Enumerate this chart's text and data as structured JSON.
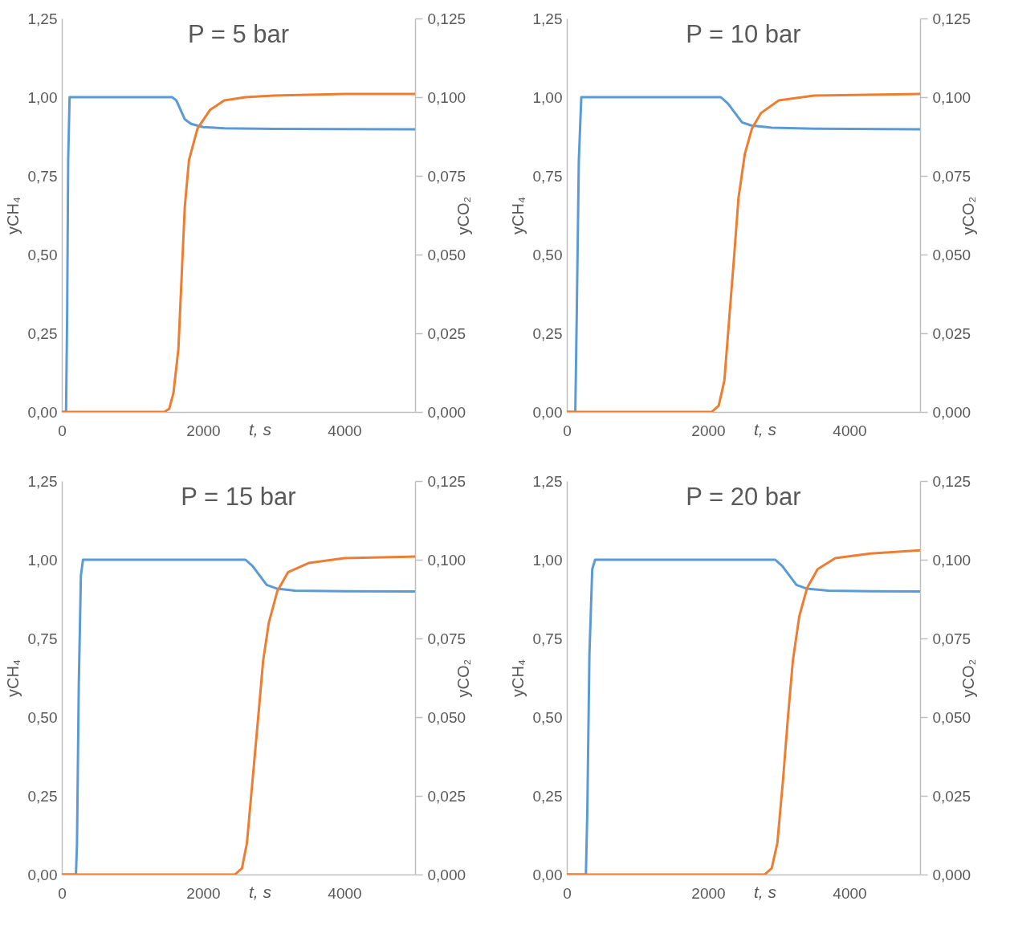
{
  "chart_data": [
    {
      "type": "line",
      "title": "P = 5 bar",
      "xlabel": "t, s",
      "ylabel": "yCH₄",
      "y2label": "yCO₂",
      "xlim": [
        0,
        5000
      ],
      "xticks": [
        0,
        2000,
        4000
      ],
      "ylim": [
        0,
        1.25
      ],
      "yticks": [
        {
          "value": 0,
          "label": "0,00"
        },
        {
          "value": 0.25,
          "label": "0,25"
        },
        {
          "value": 0.5,
          "label": "0,50"
        },
        {
          "value": 0.75,
          "label": "0,75"
        },
        {
          "value": 1,
          "label": "1,00"
        },
        {
          "value": 1.25,
          "label": "1,25"
        }
      ],
      "y2lim": [
        0,
        0.125
      ],
      "y2ticks": [
        {
          "value": 0,
          "label": "0,000"
        },
        {
          "value": 0.025,
          "label": "0,025"
        },
        {
          "value": 0.05,
          "label": "0,050"
        },
        {
          "value": 0.075,
          "label": "0,075"
        },
        {
          "value": 0.1,
          "label": "0,100"
        },
        {
          "value": 0.125,
          "label": "0,125"
        }
      ],
      "series": [
        {
          "color": "#5b9bd5",
          "x": [
            0,
            60,
            75,
            90,
            110,
            1560,
            1620,
            1680,
            1740,
            1830,
            2000,
            2300,
            3000,
            5000
          ],
          "values": [
            0,
            0,
            0.3,
            0.8,
            1,
            1,
            0.99,
            0.96,
            0.93,
            0.915,
            0.905,
            0.901,
            0.899,
            0.898
          ]
        },
        {
          "color": "#ed7d31",
          "axis": "y2",
          "x": [
            0,
            1450,
            1520,
            1580,
            1650,
            1700,
            1740,
            1800,
            1920,
            2100,
            2300,
            2600,
            3000,
            4000,
            5000
          ],
          "values": [
            0,
            0,
            0.001,
            0.006,
            0.02,
            0.045,
            0.065,
            0.08,
            0.09,
            0.096,
            0.099,
            0.1,
            0.1005,
            0.101,
            0.101
          ]
        }
      ]
    },
    {
      "type": "line",
      "title": "P = 10 bar",
      "xlabel": "t, s",
      "ylabel": "yCH₄",
      "y2label": "yCO₂",
      "xlim": [
        0,
        5000
      ],
      "xticks": [
        0,
        2000,
        4000
      ],
      "ylim": [
        0,
        1.25
      ],
      "yticks": [
        {
          "value": 0,
          "label": "0,00"
        },
        {
          "value": 0.25,
          "label": "0,25"
        },
        {
          "value": 0.5,
          "label": "0,50"
        },
        {
          "value": 0.75,
          "label": "0,75"
        },
        {
          "value": 1,
          "label": "1,00"
        },
        {
          "value": 1.25,
          "label": "1,25"
        }
      ],
      "y2lim": [
        0,
        0.125
      ],
      "y2ticks": [
        {
          "value": 0,
          "label": "0,000"
        },
        {
          "value": 0.025,
          "label": "0,025"
        },
        {
          "value": 0.05,
          "label": "0,050"
        },
        {
          "value": 0.075,
          "label": "0,075"
        },
        {
          "value": 0.1,
          "label": "0,100"
        },
        {
          "value": 0.125,
          "label": "0,125"
        }
      ],
      "series": [
        {
          "color": "#5b9bd5",
          "x": [
            0,
            120,
            140,
            170,
            205,
            2180,
            2280,
            2380,
            2480,
            2610,
            2900,
            3500,
            5000
          ],
          "values": [
            0,
            0,
            0.3,
            0.8,
            1,
            1,
            0.98,
            0.95,
            0.92,
            0.91,
            0.903,
            0.9,
            0.898
          ]
        },
        {
          "color": "#ed7d31",
          "axis": "y2",
          "x": [
            0,
            2050,
            2150,
            2230,
            2300,
            2370,
            2430,
            2520,
            2620,
            2750,
            3000,
            3500,
            5000
          ],
          "values": [
            0,
            0,
            0.002,
            0.01,
            0.03,
            0.05,
            0.068,
            0.082,
            0.09,
            0.095,
            0.099,
            0.1005,
            0.101
          ]
        }
      ]
    },
    {
      "type": "line",
      "title": "P = 15 bar",
      "xlabel": "t, s",
      "ylabel": "yCH₄",
      "y2label": "yCO₂",
      "xlim": [
        0,
        5000
      ],
      "xticks": [
        0,
        2000,
        4000
      ],
      "ylim": [
        0,
        1.25
      ],
      "yticks": [
        {
          "value": 0,
          "label": "0,00"
        },
        {
          "value": 0.25,
          "label": "0,25"
        },
        {
          "value": 0.5,
          "label": "0,50"
        },
        {
          "value": 0.75,
          "label": "0,75"
        },
        {
          "value": 1,
          "label": "1,00"
        },
        {
          "value": 1.25,
          "label": "1,25"
        }
      ],
      "y2lim": [
        0,
        0.125
      ],
      "y2ticks": [
        {
          "value": 0,
          "label": "0,000"
        },
        {
          "value": 0.025,
          "label": "0,025"
        },
        {
          "value": 0.05,
          "label": "0,050"
        },
        {
          "value": 0.075,
          "label": "0,075"
        },
        {
          "value": 0.1,
          "label": "0,100"
        },
        {
          "value": 0.125,
          "label": "0,125"
        }
      ],
      "series": [
        {
          "color": "#5b9bd5",
          "x": [
            0,
            200,
            215,
            240,
            270,
            300,
            2600,
            2700,
            2800,
            2900,
            3050,
            3300,
            4000,
            5000
          ],
          "values": [
            0,
            0,
            0.1,
            0.6,
            0.95,
            1,
            1,
            0.98,
            0.95,
            0.92,
            0.908,
            0.902,
            0.9,
            0.899
          ]
        },
        {
          "color": "#ed7d31",
          "axis": "y2",
          "x": [
            0,
            2450,
            2550,
            2620,
            2700,
            2780,
            2850,
            2930,
            3050,
            3200,
            3500,
            4000,
            5000
          ],
          "values": [
            0,
            0,
            0.002,
            0.01,
            0.03,
            0.05,
            0.068,
            0.08,
            0.09,
            0.096,
            0.099,
            0.1005,
            0.101
          ]
        }
      ]
    },
    {
      "type": "line",
      "title": "P = 20 bar",
      "xlabel": "t, s",
      "ylabel": "yCH₄",
      "y2label": "yCO₂",
      "xlim": [
        0,
        5000
      ],
      "xticks": [
        0,
        2000,
        4000
      ],
      "ylim": [
        0,
        1.25
      ],
      "yticks": [
        {
          "value": 0,
          "label": "0,00"
        },
        {
          "value": 0.25,
          "label": "0,25"
        },
        {
          "value": 0.5,
          "label": "0,50"
        },
        {
          "value": 0.75,
          "label": "0,75"
        },
        {
          "value": 1,
          "label": "1,00"
        },
        {
          "value": 1.25,
          "label": "1,25"
        }
      ],
      "y2lim": [
        0,
        0.125
      ],
      "y2ticks": [
        {
          "value": 0,
          "label": "0,000"
        },
        {
          "value": 0.025,
          "label": "0,025"
        },
        {
          "value": 0.05,
          "label": "0,050"
        },
        {
          "value": 0.075,
          "label": "0,075"
        },
        {
          "value": 0.1,
          "label": "0,100"
        },
        {
          "value": 0.125,
          "label": "0,125"
        }
      ],
      "series": [
        {
          "color": "#5b9bd5",
          "x": [
            0,
            270,
            290,
            320,
            360,
            400,
            2950,
            3050,
            3150,
            3250,
            3400,
            3700,
            4300,
            5000
          ],
          "values": [
            0,
            0,
            0.2,
            0.7,
            0.97,
            1,
            1,
            0.98,
            0.95,
            0.92,
            0.908,
            0.902,
            0.9,
            0.899
          ]
        },
        {
          "color": "#ed7d31",
          "axis": "y2",
          "x": [
            0,
            2800,
            2900,
            2980,
            3060,
            3130,
            3200,
            3290,
            3400,
            3550,
            3800,
            4300,
            5000
          ],
          "values": [
            0,
            0,
            0.002,
            0.01,
            0.03,
            0.05,
            0.068,
            0.082,
            0.091,
            0.097,
            0.1005,
            0.102,
            0.103
          ]
        }
      ]
    }
  ]
}
